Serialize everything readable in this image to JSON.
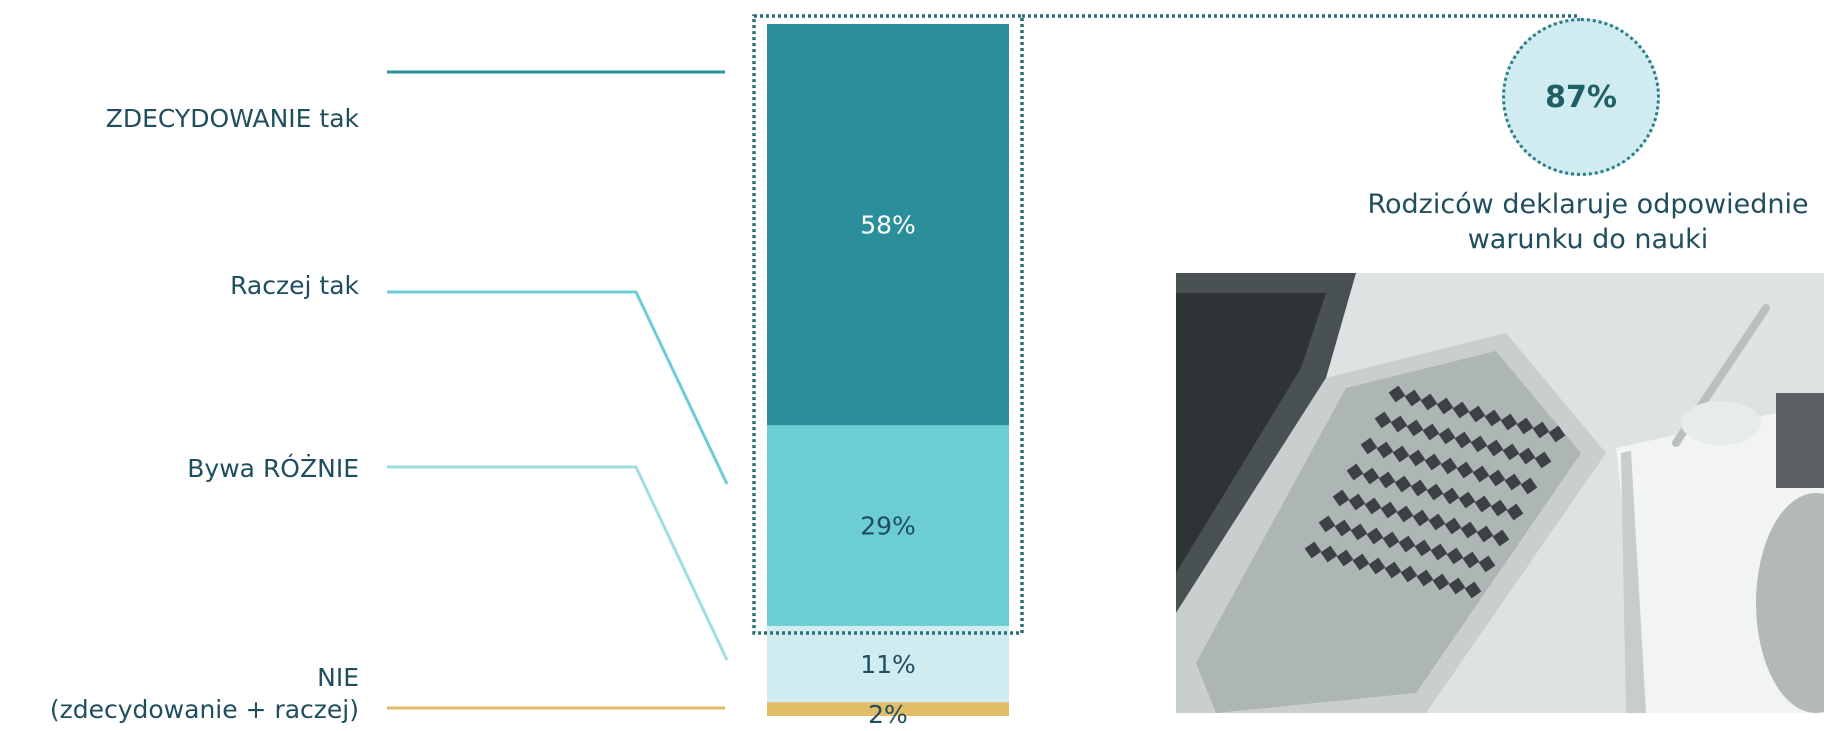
{
  "chart_data": {
    "type": "bar",
    "stacked": true,
    "orientation": "vertical",
    "categories": [
      "ZDECYDOWANIE tak",
      "Raczej tak",
      "Bywa RÓŻNIE",
      "NIE\n(zdecydowanie + raczej)"
    ],
    "values": [
      58,
      29,
      11,
      2
    ],
    "value_labels": [
      "58%",
      "29%",
      "11%",
      "2%"
    ],
    "colors": [
      "#2a8f9a",
      "#6ccdd6",
      "#d1ecf1",
      "#e2bd68"
    ],
    "label_colors": [
      "#ffffff",
      "#1f4e5f",
      "#1f4e5f",
      "#1f4e5f"
    ],
    "connector_colors": [
      "#2a8f9a",
      "#6ccdd6",
      "#9fdde4",
      "#e2bd68"
    ],
    "highlight_group": [
      0,
      1
    ],
    "legend": "left"
  },
  "highlight": {
    "value": "87%",
    "caption_line1": "Rodziców deklaruje odpowiednie",
    "caption_line2": "warunku do nauki"
  },
  "photo": {
    "icon": "laptop-notebook-photo"
  }
}
